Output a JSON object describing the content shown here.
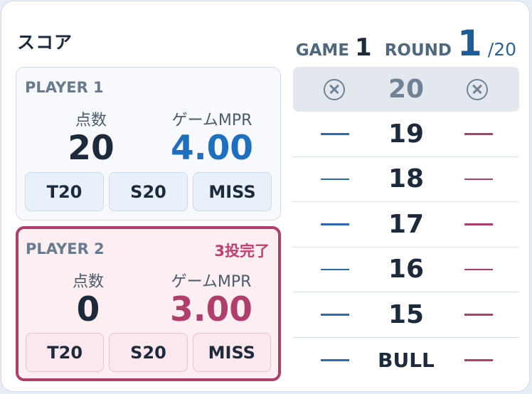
{
  "header": {
    "title": "スコア",
    "game_label": "GAME",
    "game_value": "1",
    "round_label": "ROUND",
    "round_value": "1",
    "round_total": "/20"
  },
  "players": [
    {
      "name": "PLAYER 1",
      "status": "",
      "score_label": "点数",
      "score": "20",
      "mpr_label": "ゲームMPR",
      "mpr": "4.00",
      "mpr_color": "#1f6fc0",
      "buttons": [
        "T20",
        "S20",
        "MISS"
      ]
    },
    {
      "name": "PLAYER 2",
      "status": "3投完了",
      "score_label": "点数",
      "score": "0",
      "mpr_label": "ゲームMPR",
      "mpr": "3.00",
      "mpr_color": "#b03e6a",
      "buttons": [
        "T20",
        "S20",
        "MISS"
      ]
    }
  ],
  "board": {
    "rows": [
      {
        "number": "20",
        "closed": true,
        "p1_mark": "closed-icon",
        "p2_mark": "closed-icon"
      },
      {
        "number": "19",
        "closed": false,
        "p1_mark": "dash-icon",
        "p2_mark": "dash-icon"
      },
      {
        "number": "18",
        "closed": false,
        "p1_mark": "dash-icon",
        "p2_mark": "dash-icon"
      },
      {
        "number": "17",
        "closed": false,
        "p1_mark": "dash-icon",
        "p2_mark": "dash-icon"
      },
      {
        "number": "16",
        "closed": false,
        "p1_mark": "dash-icon",
        "p2_mark": "dash-icon"
      },
      {
        "number": "15",
        "closed": false,
        "p1_mark": "dash-icon",
        "p2_mark": "dash-icon"
      },
      {
        "number": "BULL",
        "closed": false,
        "p1_mark": "dash-icon",
        "p2_mark": "dash-icon"
      }
    ]
  },
  "colors": {
    "player1_accent": "#1f6fc0",
    "player2_accent": "#b03e6a",
    "active_border": "#b03e6a"
  }
}
